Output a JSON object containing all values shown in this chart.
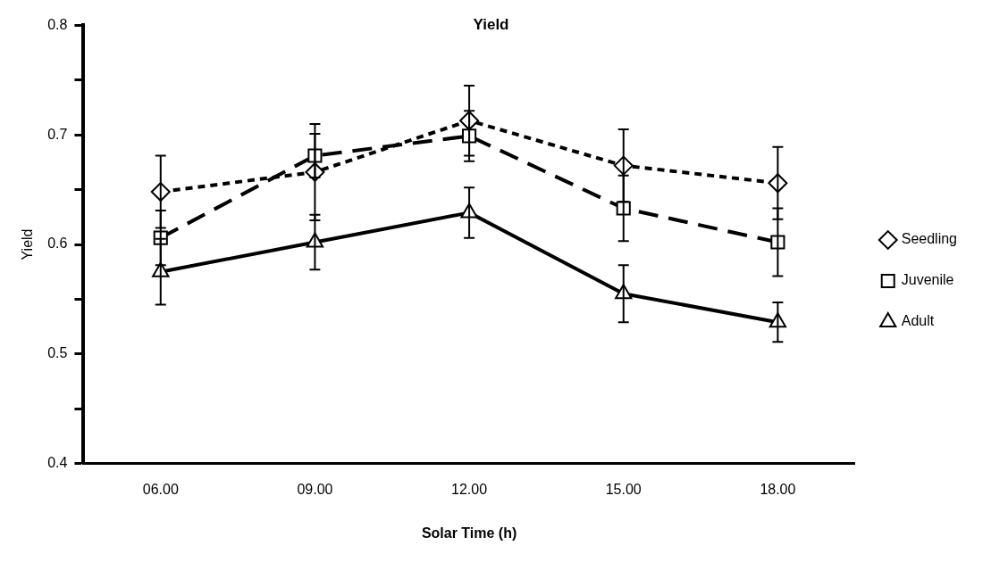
{
  "chart_data": {
    "type": "line",
    "title": "Yield",
    "xlabel": "Solar Time (h)",
    "ylabel": "Yield",
    "categories": [
      "06.00",
      "09.00",
      "12.00",
      "15.00",
      "18.00"
    ],
    "series": [
      {
        "name": "Seedling",
        "color": "#000000",
        "marker": "diamond",
        "line_style": "dotted",
        "values": [
          0.648,
          0.666,
          0.713,
          0.672,
          0.656
        ],
        "errors": [
          0.033,
          0.044,
          0.032,
          0.033,
          0.033
        ]
      },
      {
        "name": "Juvenile",
        "color": "#000000",
        "marker": "square",
        "line_style": "dashed",
        "values": [
          0.606,
          0.681,
          0.699,
          0.633,
          0.602
        ],
        "errors": [
          0.025,
          0.02,
          0.023,
          0.03,
          0.031
        ]
      },
      {
        "name": "Adult",
        "color": "#000000",
        "marker": "triangle",
        "line_style": "solid",
        "values": [
          0.575,
          0.602,
          0.629,
          0.555,
          0.529
        ],
        "errors": [
          0.03,
          0.025,
          0.023,
          0.026,
          0.018
        ]
      }
    ],
    "ylim": [
      0.4,
      0.8
    ],
    "yticks": [
      0.4,
      {
        "value": 0.45,
        "label": null
      },
      0.5,
      {
        "value": 0.55,
        "label": null
      },
      0.6,
      {
        "value": 0.65,
        "label": null
      },
      0.7,
      {
        "value": 0.75,
        "label": null
      },
      0.8
    ],
    "grid": false,
    "legend": "right"
  }
}
